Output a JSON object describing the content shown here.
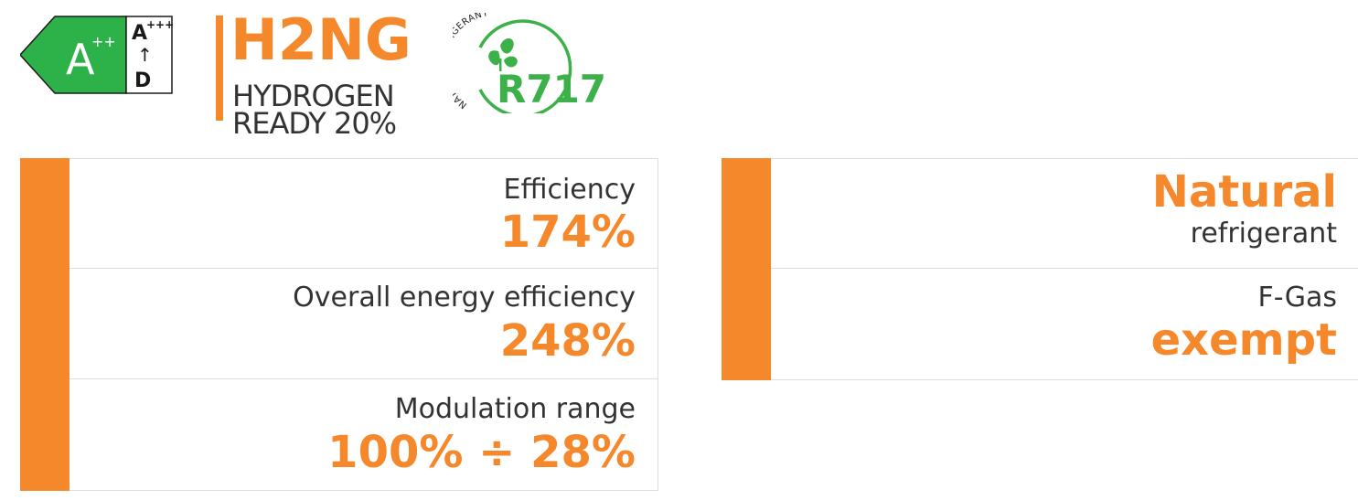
{
  "energy_label": {
    "class": "A",
    "class_suffix": "++",
    "scale_top": "A",
    "scale_top_suffix": "+++",
    "scale_arrow": "↑",
    "scale_bottom": "D",
    "colors": {
      "arrow": "#2db24a",
      "outline": "#1a1a1a"
    }
  },
  "h2ng": {
    "title": "H2NG",
    "line1": "HYDROGEN",
    "line2": "READY 20%",
    "accent_color": "#f5882a"
  },
  "refrigerant_badge": {
    "arc_text": "NATURAL REFRIGERANT",
    "code": "R717",
    "icon": "leaves-icon",
    "color": "#3cb14a"
  },
  "specs": {
    "efficiency": {
      "label": "Efficiency",
      "value": "174%"
    },
    "overall": {
      "label": "Overall energy efficiency",
      "value": "248%"
    },
    "modulation": {
      "label": "Modulation range",
      "value": "100% ÷ 28%"
    }
  },
  "refrigerant_info": {
    "natural": {
      "value": "Natural",
      "label": "refrigerant"
    },
    "fgas": {
      "label": "F-Gas",
      "value": "exempt"
    }
  },
  "theme": {
    "accent": "#f5882a",
    "text": "#333333",
    "border": "#dedede"
  }
}
